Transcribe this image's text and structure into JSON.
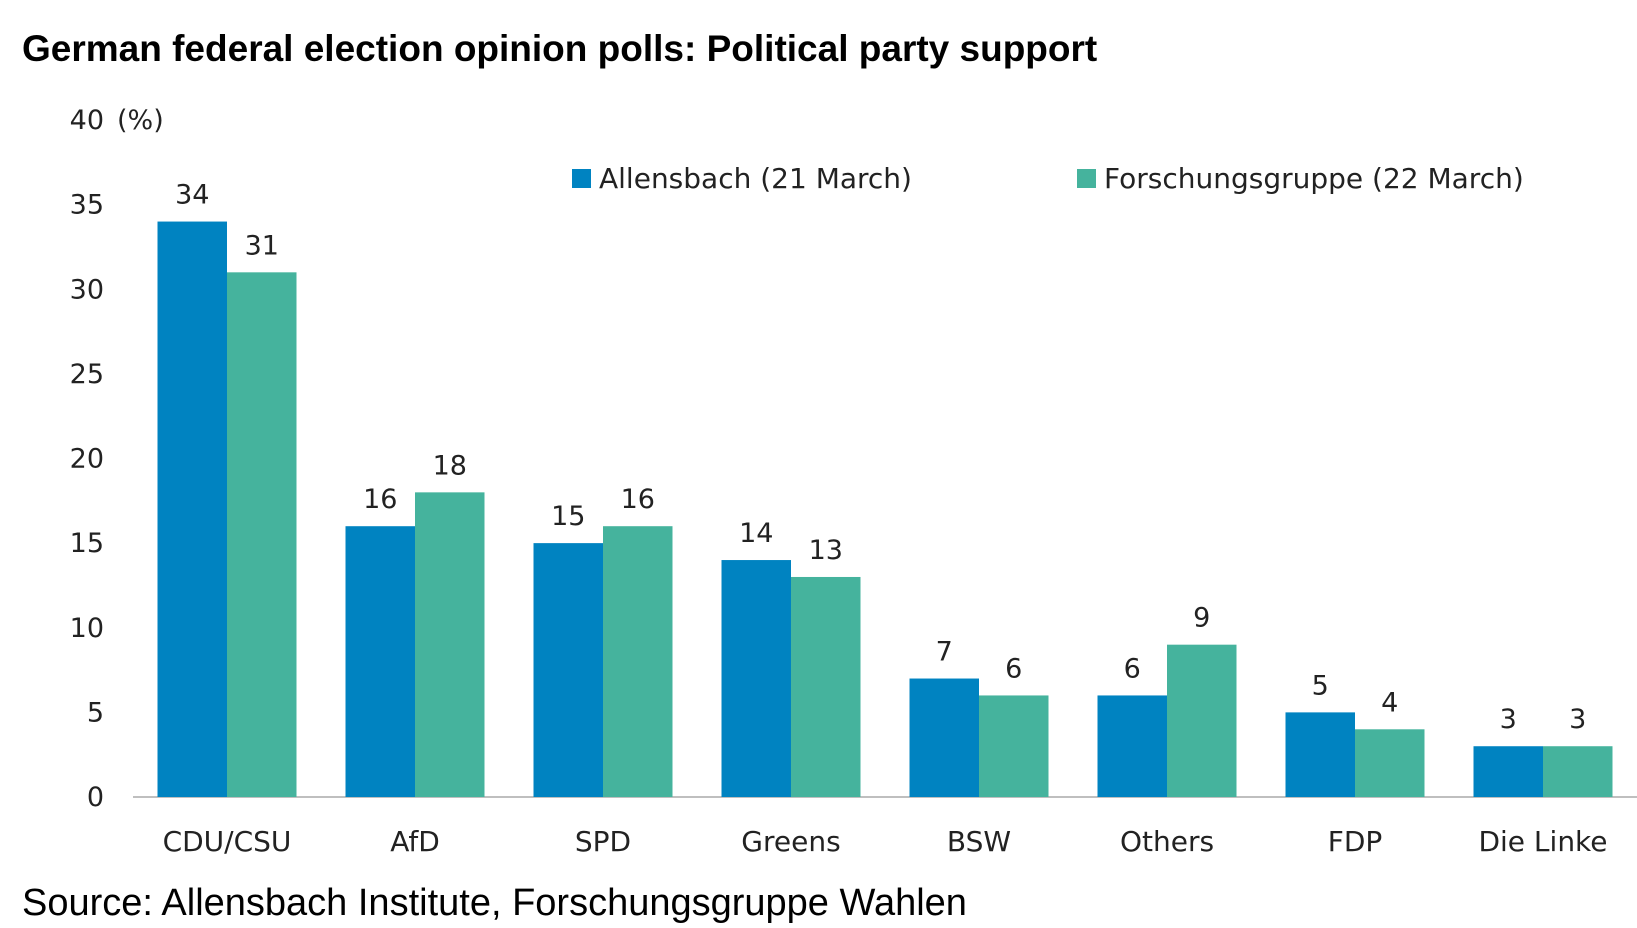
{
  "chart_data": {
    "type": "bar",
    "title": "German federal election opinion polls: Political party support",
    "source": "Source: Allensbach Institute, Forschungsgruppe Wahlen",
    "ylabel": "(%)",
    "ylim": [
      0,
      40
    ],
    "yticks": [
      0,
      5,
      10,
      15,
      20,
      25,
      30,
      35,
      40
    ],
    "grid": false,
    "legend_position": "top-right",
    "categories": [
      "CDU/CSU",
      "AfD",
      "SPD",
      "Greens",
      "BSW",
      "Others",
      "FDP",
      "Die Linke"
    ],
    "series": [
      {
        "name": "Allensbach (21 March)",
        "color": "#0083C1",
        "values": [
          34,
          16,
          15,
          14,
          7,
          6,
          5,
          3
        ]
      },
      {
        "name": "Forschungsgruppe (22 March)",
        "color": "#45B39D",
        "values": [
          31,
          18,
          16,
          13,
          6,
          9,
          4,
          3
        ]
      }
    ]
  }
}
